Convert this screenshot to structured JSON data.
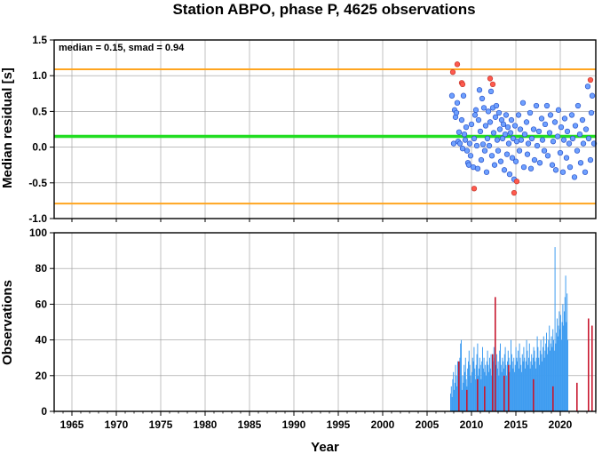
{
  "title": "Station ABPO, phase P, 4625 observations",
  "xlabel": "Year",
  "colors": {
    "grid": "#999999",
    "axis": "#000000",
    "median_line": "#22dd22",
    "smad_lines": "#ffa51f",
    "point_fill": "#6ea0ff",
    "point_edge": "#2a53c8",
    "outlier_fill": "#ff5a4e",
    "bar_blue": "#3f9cf0",
    "bar_red": "#c8182f"
  },
  "chart_data": [
    {
      "type": "scatter",
      "ylabel": "Median residual [s]",
      "annotation": "median = 0.15, smad = 0.94",
      "xlim": [
        1963,
        2024
      ],
      "ylim": [
        -1.0,
        1.5
      ],
      "yticks": [
        "-1.0",
        "-0.5",
        "0.0",
        "0.5",
        "1.0",
        "1.5"
      ],
      "median": 0.15,
      "upper_limit": 1.09,
      "lower_limit": -0.79,
      "grid": true,
      "points": [
        [
          2007.8,
          0.72
        ],
        [
          2008.0,
          0.05
        ],
        [
          2008.1,
          0.52
        ],
        [
          2008.2,
          0.42
        ],
        [
          2008.3,
          0.48
        ],
        [
          2008.4,
          0.62
        ],
        [
          2008.5,
          0.08
        ],
        [
          2008.6,
          0.21
        ],
        [
          2008.7,
          0.05
        ],
        [
          2008.9,
          0.38
        ],
        [
          2009.0,
          -0.02
        ],
        [
          2009.1,
          0.72
        ],
        [
          2009.2,
          0.18
        ],
        [
          2009.3,
          0.1
        ],
        [
          2009.4,
          0.28
        ],
        [
          2009.5,
          -0.05
        ],
        [
          2009.6,
          -0.22
        ],
        [
          2009.7,
          -0.25
        ],
        [
          2009.8,
          0.05
        ],
        [
          2009.9,
          -0.12
        ],
        [
          2010.0,
          0.32
        ],
        [
          2010.2,
          -0.28
        ],
        [
          2010.3,
          0.12
        ],
        [
          2010.4,
          0.45
        ],
        [
          2010.5,
          0.52
        ],
        [
          2010.6,
          0.02
        ],
        [
          2010.7,
          -0.3
        ],
        [
          2010.8,
          0.38
        ],
        [
          2010.9,
          0.8
        ],
        [
          2011.0,
          0.22
        ],
        [
          2011.1,
          -0.18
        ],
        [
          2011.2,
          0.68
        ],
        [
          2011.3,
          0.04
        ],
        [
          2011.4,
          0.55
        ],
        [
          2011.5,
          -0.05
        ],
        [
          2011.6,
          0.3
        ],
        [
          2011.7,
          -0.35
        ],
        [
          2011.8,
          0.12
        ],
        [
          2011.9,
          0.5
        ],
        [
          2012.0,
          0.02
        ],
        [
          2012.1,
          0.35
        ],
        [
          2012.2,
          0.78
        ],
        [
          2012.3,
          -0.12
        ],
        [
          2012.4,
          0.55
        ],
        [
          2012.5,
          0.2
        ],
        [
          2012.6,
          -0.25
        ],
        [
          2012.7,
          0.42
        ],
        [
          2012.8,
          0.58
        ],
        [
          2012.9,
          0.1
        ],
        [
          2013.0,
          -0.05
        ],
        [
          2013.1,
          0.48
        ],
        [
          2013.2,
          0.25
        ],
        [
          2013.3,
          -0.2
        ],
        [
          2013.4,
          0.38
        ],
        [
          2013.5,
          0.12
        ],
        [
          2013.6,
          0.32
        ],
        [
          2013.7,
          -0.32
        ],
        [
          2013.8,
          0.18
        ],
        [
          2013.9,
          0.45
        ],
        [
          2014.0,
          -0.1
        ],
        [
          2014.1,
          0.28
        ],
        [
          2014.2,
          0.05
        ],
        [
          2014.3,
          -0.38
        ],
        [
          2014.4,
          0.2
        ],
        [
          2014.5,
          0.38
        ],
        [
          2014.6,
          -0.15
        ],
        [
          2014.7,
          0.12
        ],
        [
          2014.8,
          -0.45
        ],
        [
          2014.9,
          0.3
        ],
        [
          2015.0,
          -0.2
        ],
        [
          2015.1,
          0.08
        ],
        [
          2015.3,
          0.45
        ],
        [
          2015.4,
          -0.05
        ],
        [
          2015.5,
          0.25
        ],
        [
          2015.6,
          0.1
        ],
        [
          2015.8,
          0.62
        ],
        [
          2015.9,
          -0.28
        ],
        [
          2016.0,
          0.18
        ],
        [
          2016.2,
          0.35
        ],
        [
          2016.3,
          -0.1
        ],
        [
          2016.4,
          0.05
        ],
        [
          2016.6,
          0.48
        ],
        [
          2016.7,
          -0.3
        ],
        [
          2016.8,
          0.12
        ],
        [
          2017.0,
          0.25
        ],
        [
          2017.1,
          -0.18
        ],
        [
          2017.3,
          0.58
        ],
        [
          2017.4,
          0.02
        ],
        [
          2017.6,
          0.22
        ],
        [
          2017.7,
          -0.22
        ],
        [
          2017.9,
          0.4
        ],
        [
          2018.0,
          0.1
        ],
        [
          2018.2,
          -0.05
        ],
        [
          2018.3,
          0.32
        ],
        [
          2018.5,
          0.58
        ],
        [
          2018.6,
          -0.12
        ],
        [
          2018.8,
          0.2
        ],
        [
          2018.9,
          0.45
        ],
        [
          2019.1,
          -0.25
        ],
        [
          2019.2,
          0.08
        ],
        [
          2019.4,
          0.35
        ],
        [
          2019.5,
          -0.32
        ],
        [
          2019.7,
          0.15
        ],
        [
          2019.8,
          0.52
        ],
        [
          2020.0,
          -0.08
        ],
        [
          2020.1,
          0.28
        ],
        [
          2020.3,
          -0.35
        ],
        [
          2020.4,
          0.1
        ],
        [
          2020.5,
          0.4
        ],
        [
          2020.7,
          -0.15
        ],
        [
          2020.8,
          0.22
        ],
        [
          2021.0,
          0.05
        ],
        [
          2021.1,
          -0.28
        ],
        [
          2021.3,
          0.45
        ],
        [
          2021.4,
          0.12
        ],
        [
          2021.6,
          -0.42
        ],
        [
          2021.7,
          0.3
        ],
        [
          2021.9,
          -0.05
        ],
        [
          2022.0,
          0.58
        ],
        [
          2022.2,
          0.18
        ],
        [
          2022.3,
          -0.22
        ],
        [
          2022.5,
          0.38
        ],
        [
          2022.6,
          0.05
        ],
        [
          2022.8,
          -0.35
        ],
        [
          2022.9,
          0.25
        ],
        [
          2023.1,
          0.85
        ],
        [
          2023.2,
          0.12
        ],
        [
          2023.4,
          -0.18
        ],
        [
          2023.5,
          0.48
        ],
        [
          2023.6,
          0.72
        ],
        [
          2023.8,
          0.05
        ]
      ],
      "outliers": [
        [
          2007.9,
          1.05
        ],
        [
          2008.4,
          1.16
        ],
        [
          2008.9,
          0.9
        ],
        [
          2009.0,
          0.88
        ],
        [
          2010.3,
          -0.58
        ],
        [
          2012.1,
          0.96
        ],
        [
          2012.4,
          0.88
        ],
        [
          2014.8,
          -0.64
        ],
        [
          2015.1,
          -0.48
        ],
        [
          2023.4,
          0.94
        ]
      ]
    },
    {
      "type": "bar",
      "ylabel": "Observations",
      "xlim": [
        1963,
        2024
      ],
      "ylim": [
        0,
        100
      ],
      "yticks": [
        "0",
        "20",
        "40",
        "60",
        "80",
        "100"
      ],
      "xticks": [
        "1965",
        "1970",
        "1975",
        "1980",
        "1985",
        "1990",
        "1995",
        "2000",
        "2005",
        "2010",
        "2015",
        "2020"
      ],
      "grid": true,
      "bins_start": 2007.6,
      "bin_width": 0.08,
      "values": [
        10,
        14,
        8,
        18,
        22,
        12,
        16,
        26,
        20,
        14,
        28,
        24,
        18,
        30,
        38,
        40,
        12,
        20,
        16,
        26,
        22,
        30,
        18,
        14,
        24,
        28,
        34,
        26,
        20,
        16,
        22,
        30,
        28,
        36,
        24,
        18,
        26,
        32,
        38,
        20,
        24,
        30,
        26,
        18,
        28,
        36,
        24,
        30,
        22,
        26,
        20,
        28,
        34,
        26,
        22,
        30,
        24,
        32,
        20,
        26,
        28,
        36,
        30,
        22,
        26,
        32,
        24,
        28,
        20,
        34,
        38,
        26,
        22,
        30,
        28,
        24,
        32,
        36,
        26,
        20,
        28,
        34,
        30,
        22,
        26,
        40,
        32,
        28,
        24,
        30,
        22,
        26,
        36,
        30,
        28,
        34,
        24,
        38,
        30,
        26,
        22,
        32,
        28,
        36,
        30,
        24,
        28,
        40,
        34,
        26,
        30,
        38,
        24,
        28,
        32,
        26,
        30,
        36,
        34,
        28,
        24,
        30,
        42,
        36,
        30,
        26,
        34,
        40,
        32,
        28,
        36,
        42,
        30,
        34,
        38,
        44,
        32,
        36,
        40,
        48,
        34,
        38,
        42,
        36,
        46,
        40,
        34,
        92,
        38,
        44,
        52,
        42,
        48,
        56,
        46,
        54,
        40,
        50,
        60,
        48,
        56,
        64,
        76,
        50,
        66,
        40
      ],
      "red_bars": [
        [
          2008.5,
          28
        ],
        [
          2009.4,
          12
        ],
        [
          2010.6,
          18
        ],
        [
          2011.4,
          14
        ],
        [
          2012.3,
          32
        ],
        [
          2012.6,
          64
        ],
        [
          2013.6,
          20
        ],
        [
          2014.1,
          26
        ],
        [
          2016.9,
          18
        ],
        [
          2019.1,
          14
        ],
        [
          2021.8,
          16
        ],
        [
          2023.1,
          52
        ],
        [
          2023.5,
          48
        ]
      ]
    }
  ]
}
